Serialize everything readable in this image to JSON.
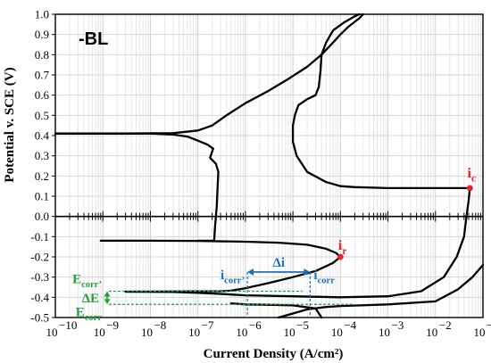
{
  "chart_data": {
    "type": "line",
    "title": "",
    "panel_label": "-BL",
    "xlabel": "Current Density (A/cm²)",
    "ylabel": "Potential v. SCE (V)",
    "xscale": "log",
    "xlim": [
      1e-10,
      0.1
    ],
    "ylim": [
      -0.5,
      1.0
    ],
    "grid": true,
    "x_tick_labels": [
      {
        "value": 1e-10,
        "base": "10",
        "exp": "−10"
      },
      {
        "value": 1e-09,
        "base": "10",
        "exp": "−9"
      },
      {
        "value": 1e-08,
        "base": "10",
        "exp": "−8"
      },
      {
        "value": 1e-07,
        "base": "10",
        "exp": "−7"
      },
      {
        "value": 1e-06,
        "base": "10",
        "exp": "−6"
      },
      {
        "value": 1e-05,
        "base": "10",
        "exp": "−5"
      },
      {
        "value": 0.0001,
        "base": "10",
        "exp": "−4"
      },
      {
        "value": 0.001,
        "base": "10",
        "exp": "−3"
      },
      {
        "value": 0.01,
        "base": "10",
        "exp": "−2"
      },
      {
        "value": 0.1,
        "base": "10",
        "exp": "−1"
      }
    ],
    "y_ticks": [
      -0.5,
      -0.4,
      -0.3,
      -0.2,
      -0.1,
      0.0,
      0.1,
      0.2,
      0.3,
      0.4,
      0.5,
      0.6,
      0.7,
      0.8,
      0.9,
      1.0
    ],
    "y_tick_labels": [
      "-0.5",
      "-0.4",
      "-0.3",
      "-0.2",
      "-0.1",
      "0.0",
      "0.1",
      "0.2",
      "0.3",
      "0.4",
      "0.5",
      "0.6",
      "0.7",
      "0.8",
      "0.9",
      "1.0"
    ],
    "series": [
      {
        "color": "#000000",
        "points": [
          [
            9e-10,
            -0.12
          ],
          [
            1e-08,
            -0.12
          ],
          [
            1e-07,
            -0.121
          ],
          [
            1e-06,
            -0.125
          ],
          [
            5e-06,
            -0.13
          ],
          [
            2e-05,
            -0.14
          ],
          [
            5e-05,
            -0.16
          ],
          [
            8e-05,
            -0.18
          ],
          [
            0.0001,
            -0.2
          ],
          [
            7e-05,
            -0.23
          ],
          [
            3e-05,
            -0.27
          ],
          [
            1e-05,
            -0.3
          ],
          [
            3e-06,
            -0.33
          ],
          [
            1e-06,
            -0.355
          ],
          [
            5e-07,
            -0.367
          ],
          [
            3e-07,
            -0.37
          ],
          [
            3e-08,
            -0.371
          ],
          [
            3e-09,
            -0.372
          ]
        ]
      },
      {
        "color": "#000000",
        "points": [
          [
            3e-09,
            -0.372
          ],
          [
            3e-08,
            -0.374
          ],
          [
            1e-07,
            -0.378
          ],
          [
            4e-07,
            -0.385
          ],
          [
            1e-06,
            -0.39
          ],
          [
            1e-05,
            -0.395
          ],
          [
            0.0001,
            -0.4
          ],
          [
            0.001,
            -0.395
          ],
          [
            0.005,
            -0.37
          ],
          [
            0.015,
            -0.3
          ],
          [
            0.028,
            -0.2
          ],
          [
            0.04,
            -0.1
          ],
          [
            0.045,
            0.0
          ],
          [
            0.05,
            0.08
          ],
          [
            0.053,
            0.14
          ]
        ]
      },
      {
        "color": "#000000",
        "points": [
          [
            5e-06,
            -0.5
          ],
          [
            1e-05,
            -0.48
          ],
          [
            2e-05,
            -0.46
          ],
          [
            5e-05,
            -0.448
          ],
          [
            0.0001,
            -0.443
          ],
          [
            0.001,
            -0.435
          ],
          [
            0.01,
            -0.42
          ],
          [
            0.03,
            -0.36
          ],
          [
            0.06,
            -0.3
          ],
          [
            0.1,
            -0.24
          ]
        ]
      },
      {
        "color": "#000000",
        "points": [
          [
            5e-07,
            -0.43
          ],
          [
            1e-06,
            -0.435
          ],
          [
            3e-06,
            -0.437
          ],
          [
            1e-05,
            -0.44
          ],
          [
            3e-05,
            -0.455
          ],
          [
            4e-05,
            -0.5
          ]
        ]
      },
      {
        "color": "#000000",
        "points": [
          [
            1e-10,
            0.41
          ],
          [
            1e-09,
            0.41
          ],
          [
            1e-08,
            0.41
          ],
          [
            3e-08,
            0.405
          ],
          [
            6e-08,
            0.395
          ],
          [
            1e-07,
            0.375
          ],
          [
            1.6e-07,
            0.355
          ],
          [
            2.1e-07,
            0.335
          ],
          [
            1.8e-07,
            0.29
          ],
          [
            2.4e-07,
            0.26
          ],
          [
            2.7e-07,
            0.22
          ],
          [
            2.6e-07,
            0.15
          ],
          [
            2.5e-07,
            0.05
          ],
          [
            2.3e-07,
            -0.05
          ],
          [
            2.2e-07,
            -0.12
          ],
          [
            1e-07,
            -0.12
          ]
        ]
      },
      {
        "color": "#000000",
        "points": [
          [
            1e-10,
            0.41
          ],
          [
            3e-09,
            0.41
          ],
          [
            3e-08,
            0.412
          ],
          [
            1e-07,
            0.425
          ],
          [
            2e-07,
            0.45
          ],
          [
            4e-07,
            0.5
          ],
          [
            1e-06,
            0.56
          ],
          [
            3e-06,
            0.62
          ],
          [
            8e-06,
            0.68
          ],
          [
            2e-05,
            0.74
          ],
          [
            4e-05,
            0.8
          ],
          [
            7e-05,
            0.86
          ],
          [
            0.0001,
            0.9
          ],
          [
            0.00015,
            0.94
          ],
          [
            0.00025,
            0.98
          ],
          [
            0.0003,
            1.0
          ]
        ]
      },
      {
        "color": "#000000",
        "points": [
          [
            0.053,
            0.14
          ],
          [
            0.03,
            0.14
          ],
          [
            0.01,
            0.14
          ],
          [
            0.001,
            0.14
          ],
          [
            0.0002,
            0.145
          ],
          [
            0.0001,
            0.15
          ],
          [
            5e-05,
            0.17
          ],
          [
            2e-05,
            0.22
          ],
          [
            1.2e-05,
            0.3
          ],
          [
            1e-05,
            0.37
          ],
          [
            1e-05,
            0.45
          ],
          [
            1.1e-05,
            0.5
          ],
          [
            1.3e-05,
            0.55
          ],
          [
            2e-05,
            0.58
          ],
          [
            3e-05,
            0.6
          ],
          [
            3.5e-05,
            0.64
          ],
          [
            3.8e-05,
            0.72
          ],
          [
            4e-05,
            0.8
          ],
          [
            5e-05,
            0.86
          ],
          [
            7e-05,
            0.92
          ],
          [
            0.00012,
            0.96
          ],
          [
            0.0002,
            0.99
          ],
          [
            0.00025,
            1.0
          ]
        ]
      }
    ],
    "points": [
      {
        "x": 0.053,
        "y": 0.14,
        "color": "#e8202a"
      },
      {
        "x": 0.0001,
        "y": -0.2,
        "color": "#e8202a"
      }
    ],
    "annotations": {
      "ic": {
        "main": "i",
        "sub": "c",
        "color": "#e8202a"
      },
      "ir": {
        "main": "i",
        "sub": "r",
        "color": "#e8202a"
      },
      "delta_i": {
        "text": "Δi",
        "color": "#1f6fb5"
      },
      "icorr_prime": {
        "main": "i",
        "sub": "corr’",
        "color": "#1f6fb5"
      },
      "icorr": {
        "main": "i",
        "sub": "corr",
        "color": "#1f6fb5"
      },
      "ecorr_prime": {
        "main": "E",
        "sub": "corr’",
        "color": "#22a33a"
      },
      "delta_e": {
        "text": "ΔE",
        "color": "#22a33a"
      },
      "ecorr": {
        "main": "E",
        "sub": "corr",
        "color": "#22a33a"
      },
      "icorr_prime_x": 1.1e-06,
      "icorr_x": 2.3e-05,
      "ecorr_prime_y": -0.37,
      "ecorr_y": -0.435
    }
  }
}
